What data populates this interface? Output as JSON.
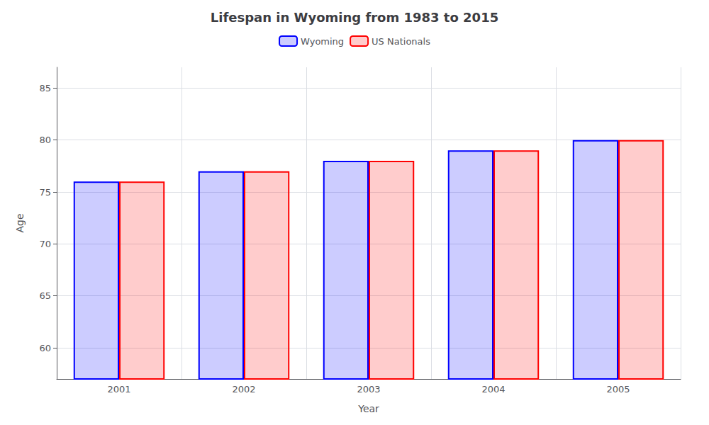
{
  "chart_data": {
    "type": "bar",
    "title": "Lifespan in Wyoming from 1983 to 2015",
    "xlabel": "Year",
    "ylabel": "Age",
    "categories": [
      "2001",
      "2002",
      "2003",
      "2004",
      "2005"
    ],
    "series": [
      {
        "name": "Wyoming",
        "color": "#0000ff",
        "values": [
          76,
          77,
          78,
          79,
          80
        ]
      },
      {
        "name": "US Nationals",
        "color": "#ff0000",
        "values": [
          76,
          77,
          78,
          79,
          80
        ]
      }
    ],
    "ylim": [
      57,
      87
    ],
    "yticks": [
      60,
      65,
      70,
      75,
      80,
      85
    ],
    "grid": true,
    "legend": "top"
  }
}
